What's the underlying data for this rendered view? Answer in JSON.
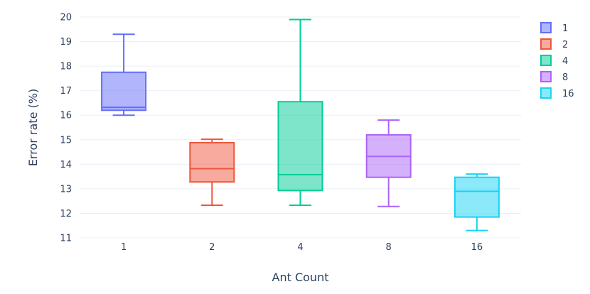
{
  "chart_data": {
    "type": "box",
    "title": "",
    "xlabel": "Ant Count",
    "ylabel": "Error rate (%)",
    "ylim": [
      11,
      20
    ],
    "yticks": [
      11,
      12,
      13,
      14,
      15,
      16,
      17,
      18,
      19,
      20
    ],
    "grid": true,
    "legend_position": "top-right",
    "series": [
      {
        "name": "1",
        "category": "1",
        "color": "#636efa",
        "min": 16.0,
        "q1": 16.2,
        "median": 16.32,
        "q3": 17.75,
        "max": 19.3
      },
      {
        "name": "2",
        "category": "2",
        "color": "#ef553b",
        "min": 12.33,
        "q1": 13.28,
        "median": 13.82,
        "q3": 14.88,
        "max": 15.02
      },
      {
        "name": "4",
        "category": "4",
        "color": "#00cc96",
        "min": 12.33,
        "q1": 12.93,
        "median": 13.58,
        "q3": 16.55,
        "max": 19.9
      },
      {
        "name": "8",
        "category": "8",
        "color": "#ab63fa",
        "min": 12.28,
        "q1": 13.47,
        "median": 14.32,
        "q3": 15.2,
        "max": 15.8
      },
      {
        "name": "16",
        "category": "16",
        "color": "#19d3f3",
        "min": 11.3,
        "q1": 11.85,
        "median": 12.9,
        "q3": 13.47,
        "max": 13.6
      }
    ]
  }
}
